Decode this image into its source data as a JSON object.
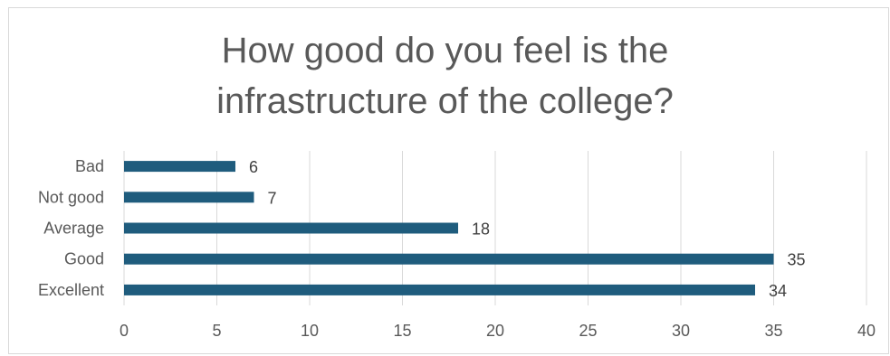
{
  "chart_data": {
    "type": "bar",
    "orientation": "horizontal",
    "title_lines": [
      "How good do you feel is the",
      "infrastructure of the college?"
    ],
    "categories": [
      "Bad",
      "Not good",
      "Average",
      "Good",
      "Excellent"
    ],
    "values": [
      6,
      7,
      18,
      35,
      34
    ],
    "data_labels": [
      "6",
      "7",
      "18",
      "35",
      "34"
    ],
    "xlim": [
      0,
      40
    ],
    "x_ticks": [
      0,
      5,
      10,
      15,
      20,
      25,
      30,
      35,
      40
    ],
    "x_tick_labels": [
      "0",
      "5",
      "10",
      "15",
      "20",
      "25",
      "30",
      "35",
      "40"
    ],
    "grid": "vertical",
    "legend": "none",
    "bar_color": "#1f5c7d",
    "grid_color": "#d9d9d9",
    "text_color": "#595959"
  }
}
